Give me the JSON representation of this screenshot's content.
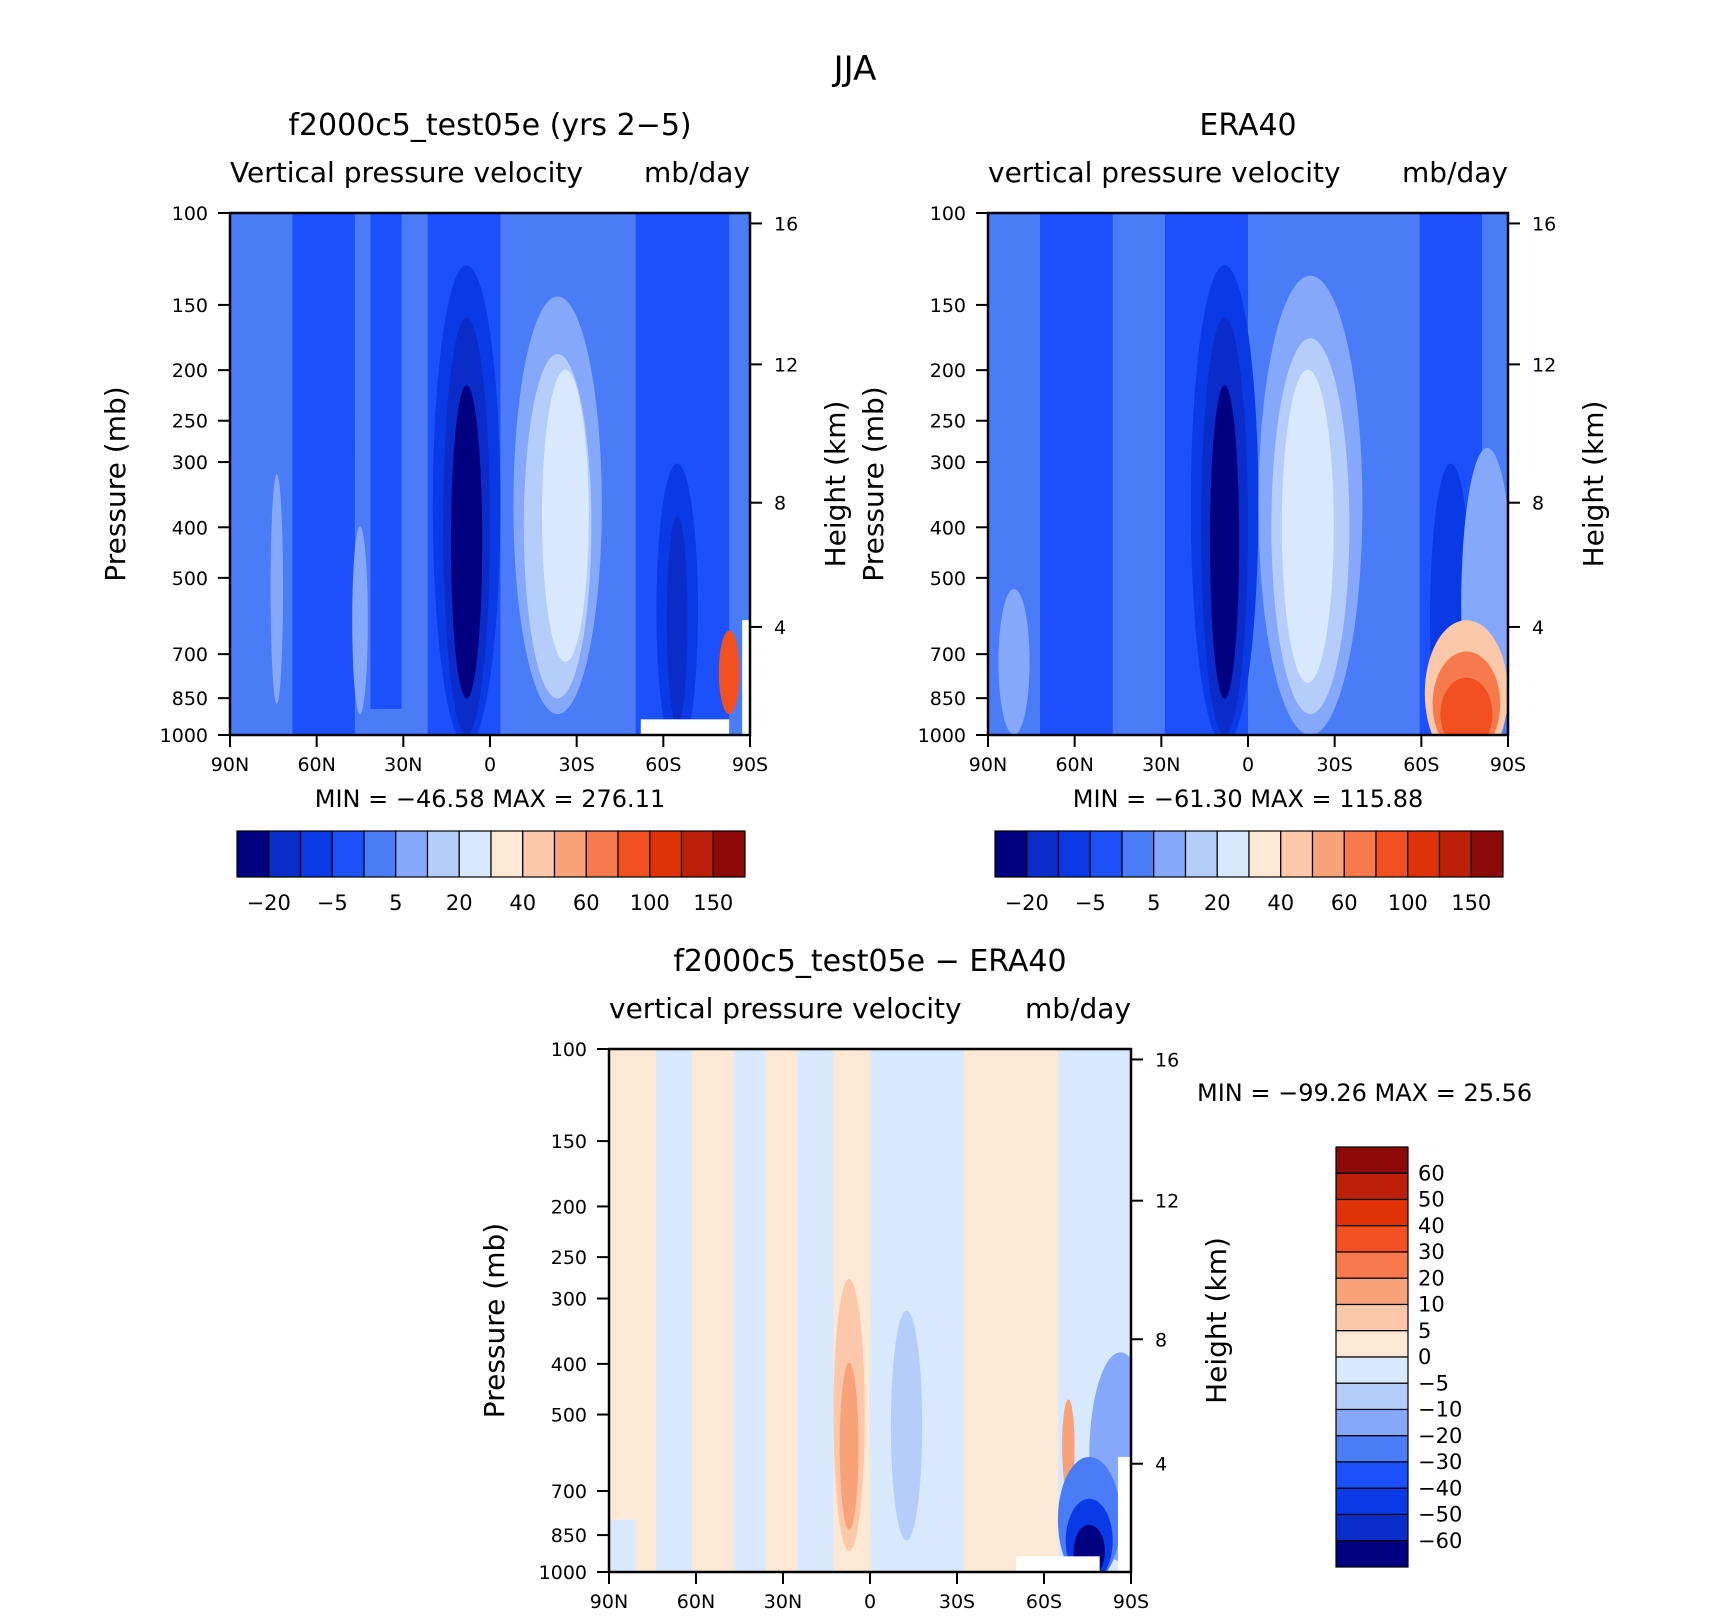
{
  "figure": {
    "title": "JJA"
  },
  "colors": {
    "absolute_scale": [
      "#000080",
      "#0a2cc8",
      "#0a3ae6",
      "#1c50fa",
      "#4a7cf8",
      "#86a8fb",
      "#b4cdfb",
      "#d8e8fd",
      "#fde8d6",
      "#fbc8aa",
      "#f8a27a",
      "#f67a4c",
      "#f25020",
      "#e03208",
      "#bc2008",
      "#8c0a08"
    ],
    "diff_scale": [
      "#000080",
      "#0a2cc8",
      "#0a3ae6",
      "#1c50fa",
      "#4a7cf8",
      "#86a8fb",
      "#b4cdfb",
      "#d8e8fd",
      "#fde8d6",
      "#fbc8aa",
      "#f8a27a",
      "#f67a4c",
      "#f25020",
      "#e03208",
      "#bc2008",
      "#8c0a08"
    ]
  },
  "chart_data": [
    {
      "id": "model",
      "type": "heatmap",
      "title": "f2000c5_test05e (yrs 2−5)",
      "left_label": "Vertical pressure velocity",
      "right_label": "mb/day",
      "ylabel": "Pressure (mb)",
      "y2label": "Height (km)",
      "xticks": [
        "90N",
        "60N",
        "30N",
        "0",
        "30S",
        "60S",
        "90S"
      ],
      "yticks": [
        "100",
        "150",
        "200",
        "250",
        "300",
        "400",
        "500",
        "700",
        "850",
        "1000"
      ],
      "y2ticks": [
        "16",
        "12",
        "8",
        "4"
      ],
      "stats": {
        "min_label": "MIN =",
        "min": "−46.58",
        "max_label": "MAX =",
        "max": "276.11"
      },
      "colorbar_labels": [
        "−20",
        "−5",
        "5",
        "20",
        "40",
        "60",
        "100",
        "150"
      ]
    },
    {
      "id": "obs",
      "type": "heatmap",
      "title": "ERA40",
      "left_label": "vertical pressure velocity",
      "right_label": "mb/day",
      "ylabel": "Pressure (mb)",
      "y2label": "Height (km)",
      "xticks": [
        "90N",
        "60N",
        "30N",
        "0",
        "30S",
        "60S",
        "90S"
      ],
      "yticks": [
        "100",
        "150",
        "200",
        "250",
        "300",
        "400",
        "500",
        "700",
        "850",
        "1000"
      ],
      "y2ticks": [
        "16",
        "12",
        "8",
        "4"
      ],
      "stats": {
        "min_label": "MIN =",
        "min": "−61.30",
        "max_label": "MAX =",
        "max": "115.88"
      },
      "colorbar_labels": [
        "−20",
        "−5",
        "5",
        "20",
        "40",
        "60",
        "100",
        "150"
      ]
    },
    {
      "id": "diff",
      "type": "heatmap",
      "title": "f2000c5_test05e − ERA40",
      "left_label": "vertical pressure velocity",
      "right_label": "mb/day",
      "ylabel": "Pressure (mb)",
      "y2label": "Height (km)",
      "xticks": [
        "90N",
        "60N",
        "30N",
        "0",
        "30S",
        "60S",
        "90S"
      ],
      "yticks": [
        "100",
        "150",
        "200",
        "250",
        "300",
        "400",
        "500",
        "700",
        "850",
        "1000"
      ],
      "y2ticks": [
        "16",
        "12",
        "8",
        "4"
      ],
      "stats": {
        "min_label": "MIN =",
        "min": "−99.26",
        "max_label": "MAX =",
        "max": "25.56"
      },
      "colorbar_labels": [
        "60",
        "50",
        "40",
        "30",
        "20",
        "10",
        "5",
        "0",
        "−5",
        "−10",
        "−20",
        "−30",
        "−40",
        "−50",
        "−60"
      ]
    }
  ]
}
